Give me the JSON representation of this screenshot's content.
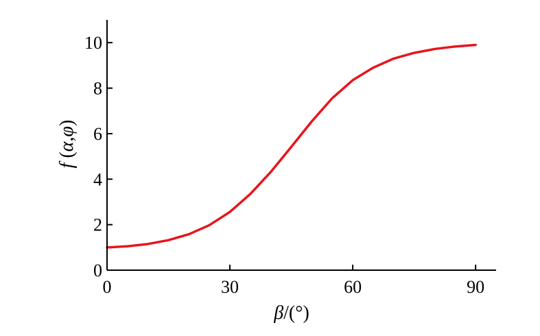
{
  "chart_data": {
    "type": "line",
    "title": "",
    "xlabel": "β/(°)",
    "ylabel": "f (α,φ)",
    "xlabel_parts": {
      "symbol": "β",
      "unit": "/(°)"
    },
    "ylabel_parts": {
      "func": "f",
      "open": " (",
      "arg1": "α",
      "comma": ",",
      "arg2": "φ",
      "close": ")"
    },
    "xlim": [
      0,
      95
    ],
    "ylim": [
      0,
      11
    ],
    "xticks": [
      0,
      30,
      60,
      90
    ],
    "xtick_labels": [
      "0",
      "30",
      "60",
      "90"
    ],
    "yticks": [
      0,
      2,
      4,
      6,
      8,
      10
    ],
    "ytick_labels": [
      "0",
      "2",
      "4",
      "6",
      "8",
      "10"
    ],
    "grid": false,
    "legend": "none",
    "series": [
      {
        "color": "#e8141c",
        "x": [
          0,
          5,
          10,
          15,
          20,
          25,
          30,
          35,
          40,
          45,
          50,
          55,
          60,
          65,
          70,
          75,
          80,
          85,
          90
        ],
        "y": [
          1.0,
          1.05,
          1.15,
          1.32,
          1.58,
          1.98,
          2.56,
          3.35,
          4.32,
          5.42,
          6.54,
          7.56,
          8.35,
          8.9,
          9.3,
          9.55,
          9.72,
          9.83,
          9.9
        ]
      }
    ]
  }
}
